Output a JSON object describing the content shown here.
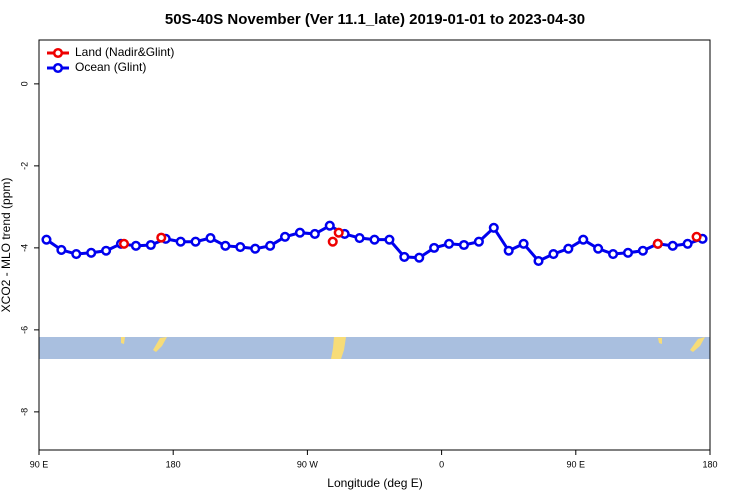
{
  "chart_data": {
    "type": "line",
    "title": "50S-40S November (Ver 11.1_late)   2019-01-01 to 2023-04-30",
    "xlabel": "Longitude (deg E)",
    "ylabel": "XCO2 - MLO trend (ppm)",
    "xlim": [
      90,
      540
    ],
    "ylim": [
      -8.93,
      1.07
    ],
    "xticks": [
      {
        "value": 90,
        "label": "90 E"
      },
      180,
      {
        "value": 270,
        "label": "90 W"
      },
      {
        "value": 360,
        "label": "0"
      },
      {
        "value": 450,
        "label": "90 E"
      },
      {
        "value": 540,
        "label": "180"
      }
    ],
    "yticks": [
      0,
      -2,
      -4,
      -6,
      -8
    ],
    "legend": "top-left",
    "series": [
      {
        "name": "Land (Nadir&Glint)",
        "color": "#ee0000",
        "line": false,
        "x": [
          147,
          172,
          287,
          291,
          505,
          531
        ],
        "values": [
          -3.9,
          -3.75,
          -3.85,
          -3.63,
          -3.9,
          -3.73
        ]
      },
      {
        "name": "Ocean (Glint)",
        "color": "#0000ee",
        "line": true,
        "x": [
          95,
          105,
          115,
          125,
          135,
          145,
          155,
          165,
          175,
          185,
          195,
          205,
          215,
          225,
          235,
          245,
          255,
          265,
          275,
          285,
          295,
          305,
          315,
          325,
          335,
          345,
          355,
          365,
          375,
          385,
          395,
          405,
          415,
          425,
          435,
          445,
          455,
          465,
          475,
          485,
          495,
          505,
          515,
          525,
          535
        ],
        "values": [
          -3.8,
          -4.05,
          -4.15,
          -4.12,
          -4.07,
          -3.9,
          -3.95,
          -3.93,
          -3.78,
          -3.85,
          -3.85,
          -3.76,
          -3.95,
          -3.98,
          -4.02,
          -3.95,
          -3.73,
          -3.63,
          -3.66,
          -3.46,
          -3.66,
          -3.76,
          -3.8,
          -3.8,
          -4.22,
          -4.24,
          -4.0,
          -3.9,
          -3.93,
          -3.85,
          -3.51,
          -4.07,
          -3.9,
          -4.32,
          -4.15,
          -4.02,
          -3.8,
          -4.02,
          -4.15,
          -4.12,
          -4.07,
          -3.9,
          -3.95,
          -3.9,
          -3.78
        ]
      }
    ]
  }
}
